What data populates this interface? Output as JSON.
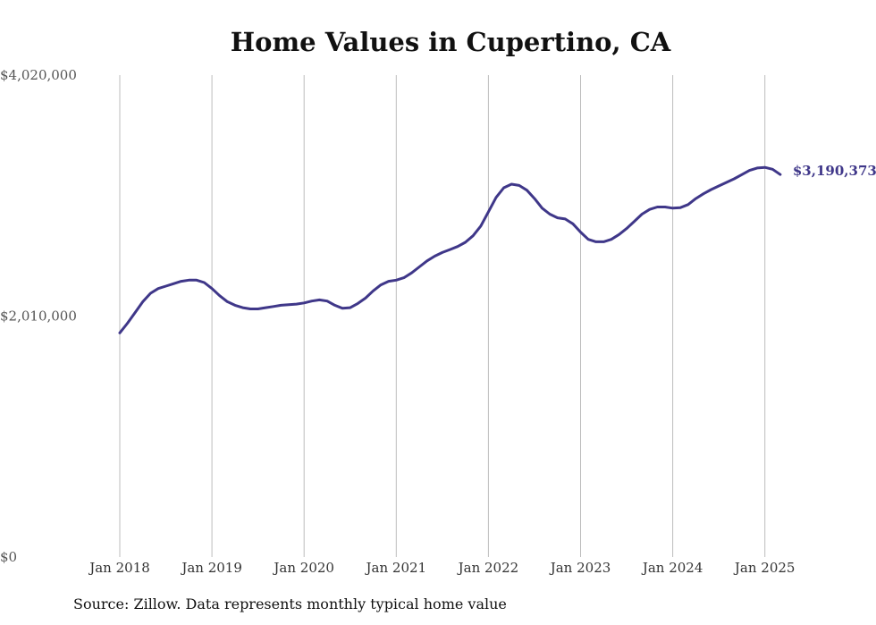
{
  "chart_data": {
    "type": "line",
    "title": "Home Values in Cupertino, CA",
    "source": "Source: Zillow. Data represents monthly typical home value",
    "y_ticks": [
      {
        "value": 0,
        "label": "$0"
      },
      {
        "value": 2010000,
        "label": "$2,010,000"
      },
      {
        "value": 4020000,
        "label": "$4,020,000"
      }
    ],
    "ylim": [
      0,
      4020000
    ],
    "x_ticks": [
      "Jan 2018",
      "Jan 2019",
      "Jan 2020",
      "Jan 2021",
      "Jan 2022",
      "Jan 2023",
      "Jan 2024",
      "Jan 2025"
    ],
    "grid": "vertical",
    "line_color": "#3f3789",
    "series": [
      {
        "x": [
          "2018-01",
          "2018-02",
          "2018-03",
          "2018-04",
          "2018-05",
          "2018-06",
          "2018-07",
          "2018-08",
          "2018-09",
          "2018-10",
          "2018-11",
          "2018-12",
          "2019-01",
          "2019-02",
          "2019-03",
          "2019-04",
          "2019-05",
          "2019-06",
          "2019-07",
          "2019-08",
          "2019-09",
          "2019-10",
          "2019-11",
          "2019-12",
          "2020-01",
          "2020-02",
          "2020-03",
          "2020-04",
          "2020-05",
          "2020-06",
          "2020-07",
          "2020-08",
          "2020-09",
          "2020-10",
          "2020-11",
          "2020-12",
          "2021-01",
          "2021-02",
          "2021-03",
          "2021-04",
          "2021-05",
          "2021-06",
          "2021-07",
          "2021-08",
          "2021-09",
          "2021-10",
          "2021-11",
          "2021-12",
          "2022-01",
          "2022-02",
          "2022-03",
          "2022-04",
          "2022-05",
          "2022-06",
          "2022-07",
          "2022-08",
          "2022-09",
          "2022-10",
          "2022-11",
          "2022-12",
          "2023-01",
          "2023-02",
          "2023-03",
          "2023-04",
          "2023-05",
          "2023-06",
          "2023-07",
          "2023-08",
          "2023-09",
          "2023-10",
          "2023-11",
          "2023-12",
          "2024-01",
          "2024-02",
          "2024-03",
          "2024-04",
          "2024-05",
          "2024-06",
          "2024-07",
          "2024-08",
          "2024-09",
          "2024-10",
          "2024-11",
          "2024-12",
          "2025-01",
          "2025-02",
          "2025-03"
        ],
        "values": [
          1870000,
          1950000,
          2040000,
          2130000,
          2200000,
          2240000,
          2260000,
          2280000,
          2300000,
          2310000,
          2310000,
          2290000,
          2240000,
          2180000,
          2130000,
          2100000,
          2080000,
          2070000,
          2070000,
          2080000,
          2090000,
          2100000,
          2105000,
          2110000,
          2120000,
          2135000,
          2145000,
          2135000,
          2100000,
          2075000,
          2080000,
          2115000,
          2160000,
          2220000,
          2270000,
          2300000,
          2310000,
          2330000,
          2370000,
          2420000,
          2470000,
          2510000,
          2540000,
          2565000,
          2590000,
          2625000,
          2680000,
          2760000,
          2880000,
          3000000,
          3080000,
          3110000,
          3100000,
          3060000,
          2990000,
          2910000,
          2860000,
          2830000,
          2820000,
          2780000,
          2710000,
          2650000,
          2630000,
          2630000,
          2650000,
          2690000,
          2740000,
          2800000,
          2860000,
          2900000,
          2920000,
          2920000,
          2910000,
          2915000,
          2940000,
          2990000,
          3030000,
          3065000,
          3095000,
          3125000,
          3155000,
          3190000,
          3225000,
          3245000,
          3250000,
          3235000,
          3190373
        ]
      }
    ],
    "end_label": "$3,190,373"
  }
}
